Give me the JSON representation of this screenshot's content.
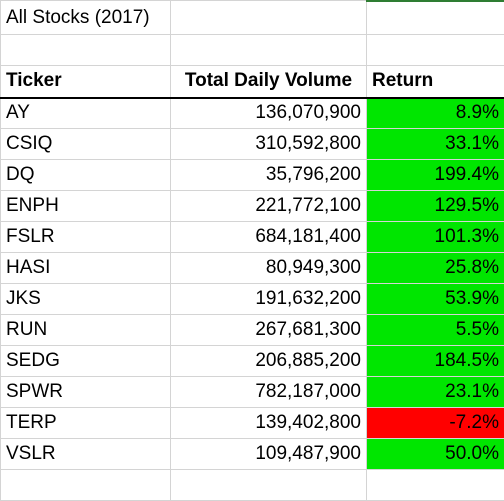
{
  "sheet": {
    "title": "All Stocks (2017)",
    "headers": {
      "ticker": "Ticker",
      "volume": "Total Daily Volume",
      "return": "Return"
    },
    "rows": [
      {
        "ticker": "AY",
        "volume": "136,070,900",
        "return": "8.9%",
        "status": "positive"
      },
      {
        "ticker": "CSIQ",
        "volume": "310,592,800",
        "return": "33.1%",
        "status": "positive"
      },
      {
        "ticker": "DQ",
        "volume": "35,796,200",
        "return": "199.4%",
        "status": "positive"
      },
      {
        "ticker": "ENPH",
        "volume": "221,772,100",
        "return": "129.5%",
        "status": "positive"
      },
      {
        "ticker": "FSLR",
        "volume": "684,181,400",
        "return": "101.3%",
        "status": "positive"
      },
      {
        "ticker": "HASI",
        "volume": "80,949,300",
        "return": "25.8%",
        "status": "positive"
      },
      {
        "ticker": "JKS",
        "volume": "191,632,200",
        "return": "53.9%",
        "status": "positive"
      },
      {
        "ticker": "RUN",
        "volume": "267,681,300",
        "return": "5.5%",
        "status": "positive"
      },
      {
        "ticker": "SEDG",
        "volume": "206,885,200",
        "return": "184.5%",
        "status": "positive"
      },
      {
        "ticker": "SPWR",
        "volume": "782,187,000",
        "return": "23.1%",
        "status": "positive"
      },
      {
        "ticker": "TERP",
        "volume": "139,402,800",
        "return": "-7.2%",
        "status": "negative"
      },
      {
        "ticker": "VSLR",
        "volume": "109,487,900",
        "return": "50.0%",
        "status": "positive"
      }
    ]
  },
  "colors": {
    "positive": "#00e600",
    "negative": "#ff0000",
    "gridline": "#d4d4d4"
  }
}
